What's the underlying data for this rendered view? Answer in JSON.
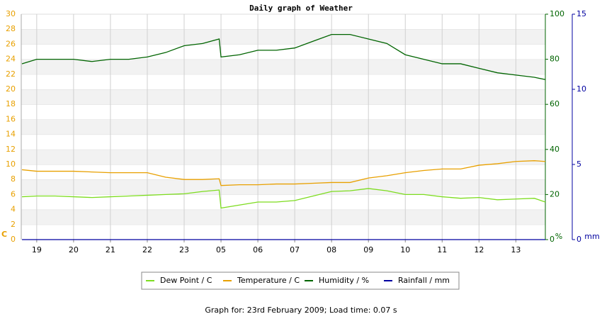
{
  "chart_data": {
    "type": "line",
    "title": "Daily graph of Weather",
    "footer": "Graph for: 23rd February 2009; Load time: 0.07 s",
    "ylabel": "C",
    "y2label": "%",
    "y3label": "mm",
    "x": [
      -0.4,
      0,
      0.5,
      1,
      1.5,
      2,
      2.5,
      3,
      3.5,
      4,
      4.5,
      4.95,
      5.0,
      5.5,
      6,
      6.5,
      7,
      7.5,
      8,
      8.5,
      9,
      9.5,
      10,
      10.5,
      11,
      11.5,
      12,
      12.5,
      13,
      13.5,
      13.8
    ],
    "xlim": [
      -0.42,
      13.8
    ],
    "xticks": [
      {
        "value": 0,
        "label": "19"
      },
      {
        "value": 1,
        "label": "20"
      },
      {
        "value": 2,
        "label": "21"
      },
      {
        "value": 3,
        "label": "22"
      },
      {
        "value": 4,
        "label": "23"
      },
      {
        "value": 5,
        "label": "05"
      },
      {
        "value": 6,
        "label": "06"
      },
      {
        "value": 7,
        "label": "07"
      },
      {
        "value": 8,
        "label": "08"
      },
      {
        "value": 9,
        "label": "09"
      },
      {
        "value": 10,
        "label": "10"
      },
      {
        "value": 11,
        "label": "11"
      },
      {
        "value": 12,
        "label": "12"
      },
      {
        "value": 13,
        "label": "13"
      }
    ],
    "ylim": [
      0,
      30
    ],
    "yticks": [
      0,
      2,
      4,
      6,
      8,
      10,
      12,
      14,
      16,
      18,
      20,
      22,
      24,
      26,
      28,
      30
    ],
    "y2lim": [
      0,
      100
    ],
    "y2ticks": [
      0,
      20,
      40,
      60,
      80,
      100
    ],
    "y3lim": [
      0,
      15
    ],
    "y3ticks": [
      0,
      5,
      10,
      15
    ],
    "grid": true,
    "series": [
      {
        "name": "Dew Point / C",
        "color": "#7ddc1f",
        "axis": "y",
        "values": [
          5.7,
          5.8,
          5.8,
          5.7,
          5.6,
          5.7,
          5.8,
          5.9,
          6.0,
          6.1,
          6.4,
          6.6,
          4.2,
          4.6,
          5.0,
          5.0,
          5.2,
          5.8,
          6.4,
          6.5,
          6.8,
          6.5,
          6.0,
          6.0,
          5.7,
          5.5,
          5.6,
          5.3,
          5.4,
          5.5,
          5.0
        ]
      },
      {
        "name": "Temperature / C",
        "color": "#e8a000",
        "axis": "y",
        "values": [
          9.3,
          9.1,
          9.1,
          9.1,
          9.0,
          8.9,
          8.9,
          8.9,
          8.3,
          8.0,
          8.0,
          8.1,
          7.2,
          7.3,
          7.3,
          7.4,
          7.4,
          7.5,
          7.6,
          7.6,
          8.2,
          8.5,
          8.9,
          9.2,
          9.4,
          9.4,
          9.9,
          10.1,
          10.4,
          10.5,
          10.4
        ]
      },
      {
        "name": "Humidity / %",
        "color": "#006400",
        "axis": "y2",
        "values": [
          78,
          80,
          80,
          80,
          79,
          80,
          80,
          81,
          83,
          86,
          87,
          89,
          81,
          82,
          84,
          84,
          85,
          88,
          91,
          91,
          89,
          87,
          82,
          80,
          78,
          78,
          76,
          74,
          73,
          72,
          71
        ]
      },
      {
        "name": "Rainfall / mm",
        "color": "#0000a0",
        "axis": "y3",
        "values": [
          0,
          0,
          0,
          0,
          0,
          0,
          0,
          0,
          0,
          0,
          0,
          0,
          0,
          0,
          0,
          0,
          0,
          0,
          0,
          0,
          0,
          0,
          0,
          0,
          0,
          0,
          0,
          0,
          0,
          0,
          0
        ]
      }
    ]
  }
}
